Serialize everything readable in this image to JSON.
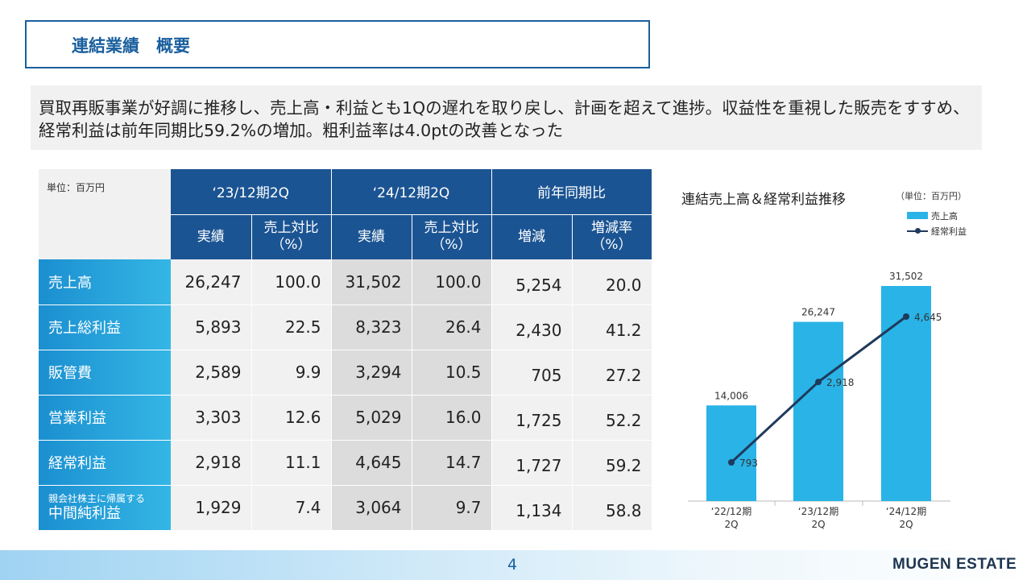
{
  "header": {
    "title": "連結業績　概要"
  },
  "summary": {
    "text": "買取再販事業が好調に推移し、売上高・利益とも1Qの遅れを取り戻し、計画を超えて進捗。収益性を重視した販売をすすめ、経常利益は前年同期比59.2%の増加。粗利益率は4.0ptの改善となった"
  },
  "table": {
    "unit_label": "単位：百万円",
    "period_headers": [
      "‘23/12期2Q",
      "‘24/12期2Q",
      "前年同期比"
    ],
    "sub_headers": [
      "実績",
      "売上対比\n（%）",
      "実績",
      "売上対比\n（%）",
      "増減",
      "増減率\n（%）"
    ],
    "rows": [
      {
        "label": "売上高",
        "values": [
          "26,247",
          "100.0",
          "31,502",
          "100.0",
          "5,254",
          "20.0"
        ]
      },
      {
        "label": "売上総利益",
        "values": [
          "5,893",
          "22.5",
          "8,323",
          "26.4",
          "2,430",
          "41.2"
        ]
      },
      {
        "label": "販管費",
        "values": [
          "2,589",
          "9.9",
          "3,294",
          "10.5",
          "705",
          "27.2"
        ]
      },
      {
        "label": "営業利益",
        "values": [
          "3,303",
          "12.6",
          "5,029",
          "16.0",
          "1,725",
          "52.2"
        ]
      },
      {
        "label": "経常利益",
        "values": [
          "2,918",
          "11.1",
          "4,645",
          "14.7",
          "1,727",
          "59.2"
        ]
      },
      {
        "label_small": "親会社株主に帰属する",
        "label": "中間純利益",
        "values": [
          "1,929",
          "7.4",
          "3,064",
          "9.7",
          "1,134",
          "58.8"
        ]
      }
    ]
  },
  "chart_data": {
    "type": "bar",
    "title": "連結売上高＆経常利益推移",
    "unit": "（単位：百万円）",
    "categories": [
      "‘22/12期\n2Q",
      "‘23/12期\n2Q",
      "‘24/12期\n2Q"
    ],
    "series": [
      {
        "name": "売上高",
        "type": "bar",
        "values": [
          14006,
          26247,
          31502
        ],
        "labels": [
          "14,006",
          "26,247",
          "31,502"
        ],
        "color": "#29b3e6"
      },
      {
        "name": "経常利益",
        "type": "line",
        "values": [
          793,
          2918,
          4645
        ],
        "labels": [
          "793",
          "2,918",
          "4,645"
        ],
        "color": "#1f3a5c"
      }
    ],
    "legend_position": "top-right",
    "grid": false
  },
  "footer": {
    "page": "4",
    "brand": "MUGEN ESTATE"
  }
}
